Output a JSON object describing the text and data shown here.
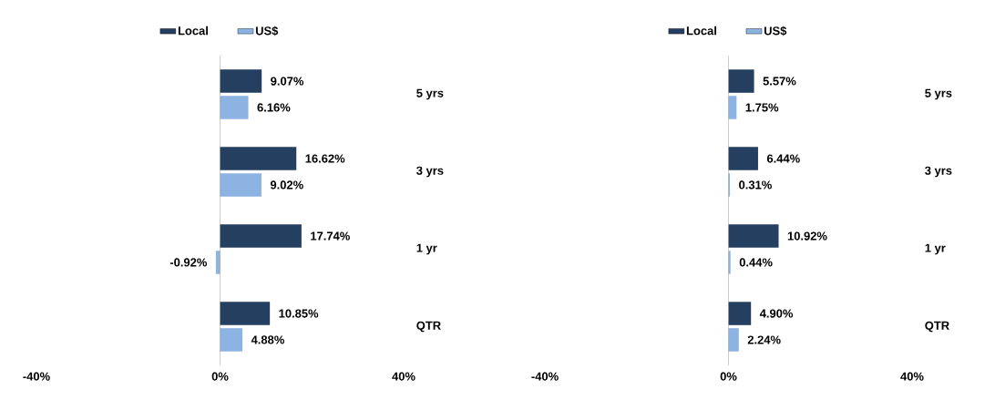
{
  "chart_data": [
    {
      "type": "bar",
      "orientation": "horizontal",
      "categories": [
        "5 yrs",
        "3 yrs",
        "1 yr",
        "QTR"
      ],
      "legend": "top",
      "xlim": [
        -40,
        40
      ],
      "xticks": [
        {
          "value": -40,
          "label": "-40%"
        },
        {
          "value": 0,
          "label": "0%"
        },
        {
          "value": 40,
          "label": "40%"
        }
      ],
      "series": [
        {
          "name": "Local",
          "color": "#243f60",
          "values": [
            9.07,
            16.62,
            17.74,
            10.85
          ],
          "value_labels": [
            "9.07%",
            "16.62%",
            "17.74%",
            "10.85%"
          ]
        },
        {
          "name": "US$",
          "color": "#8db3e2",
          "values": [
            6.16,
            9.02,
            -0.92,
            4.88
          ],
          "value_labels": [
            "6.16%",
            "9.02%",
            "-0.92%",
            "4.88%"
          ]
        }
      ]
    },
    {
      "type": "bar",
      "orientation": "horizontal",
      "categories": [
        "5 yrs",
        "3 yrs",
        "1 yr",
        "QTR"
      ],
      "legend": "top",
      "xlim": [
        -40,
        40
      ],
      "xticks": [
        {
          "value": -40,
          "label": "-40%"
        },
        {
          "value": 0,
          "label": "0%"
        },
        {
          "value": 40,
          "label": "40%"
        }
      ],
      "series": [
        {
          "name": "Local",
          "color": "#243f60",
          "values": [
            5.57,
            6.44,
            10.92,
            4.9
          ],
          "value_labels": [
            "5.57%",
            "6.44%",
            "10.92%",
            "4.90%"
          ]
        },
        {
          "name": "US$",
          "color": "#8db3e2",
          "values": [
            1.75,
            0.31,
            0.44,
            2.24
          ],
          "value_labels": [
            "1.75%",
            "0.31%",
            "0.44%",
            "2.24%"
          ]
        }
      ]
    }
  ]
}
